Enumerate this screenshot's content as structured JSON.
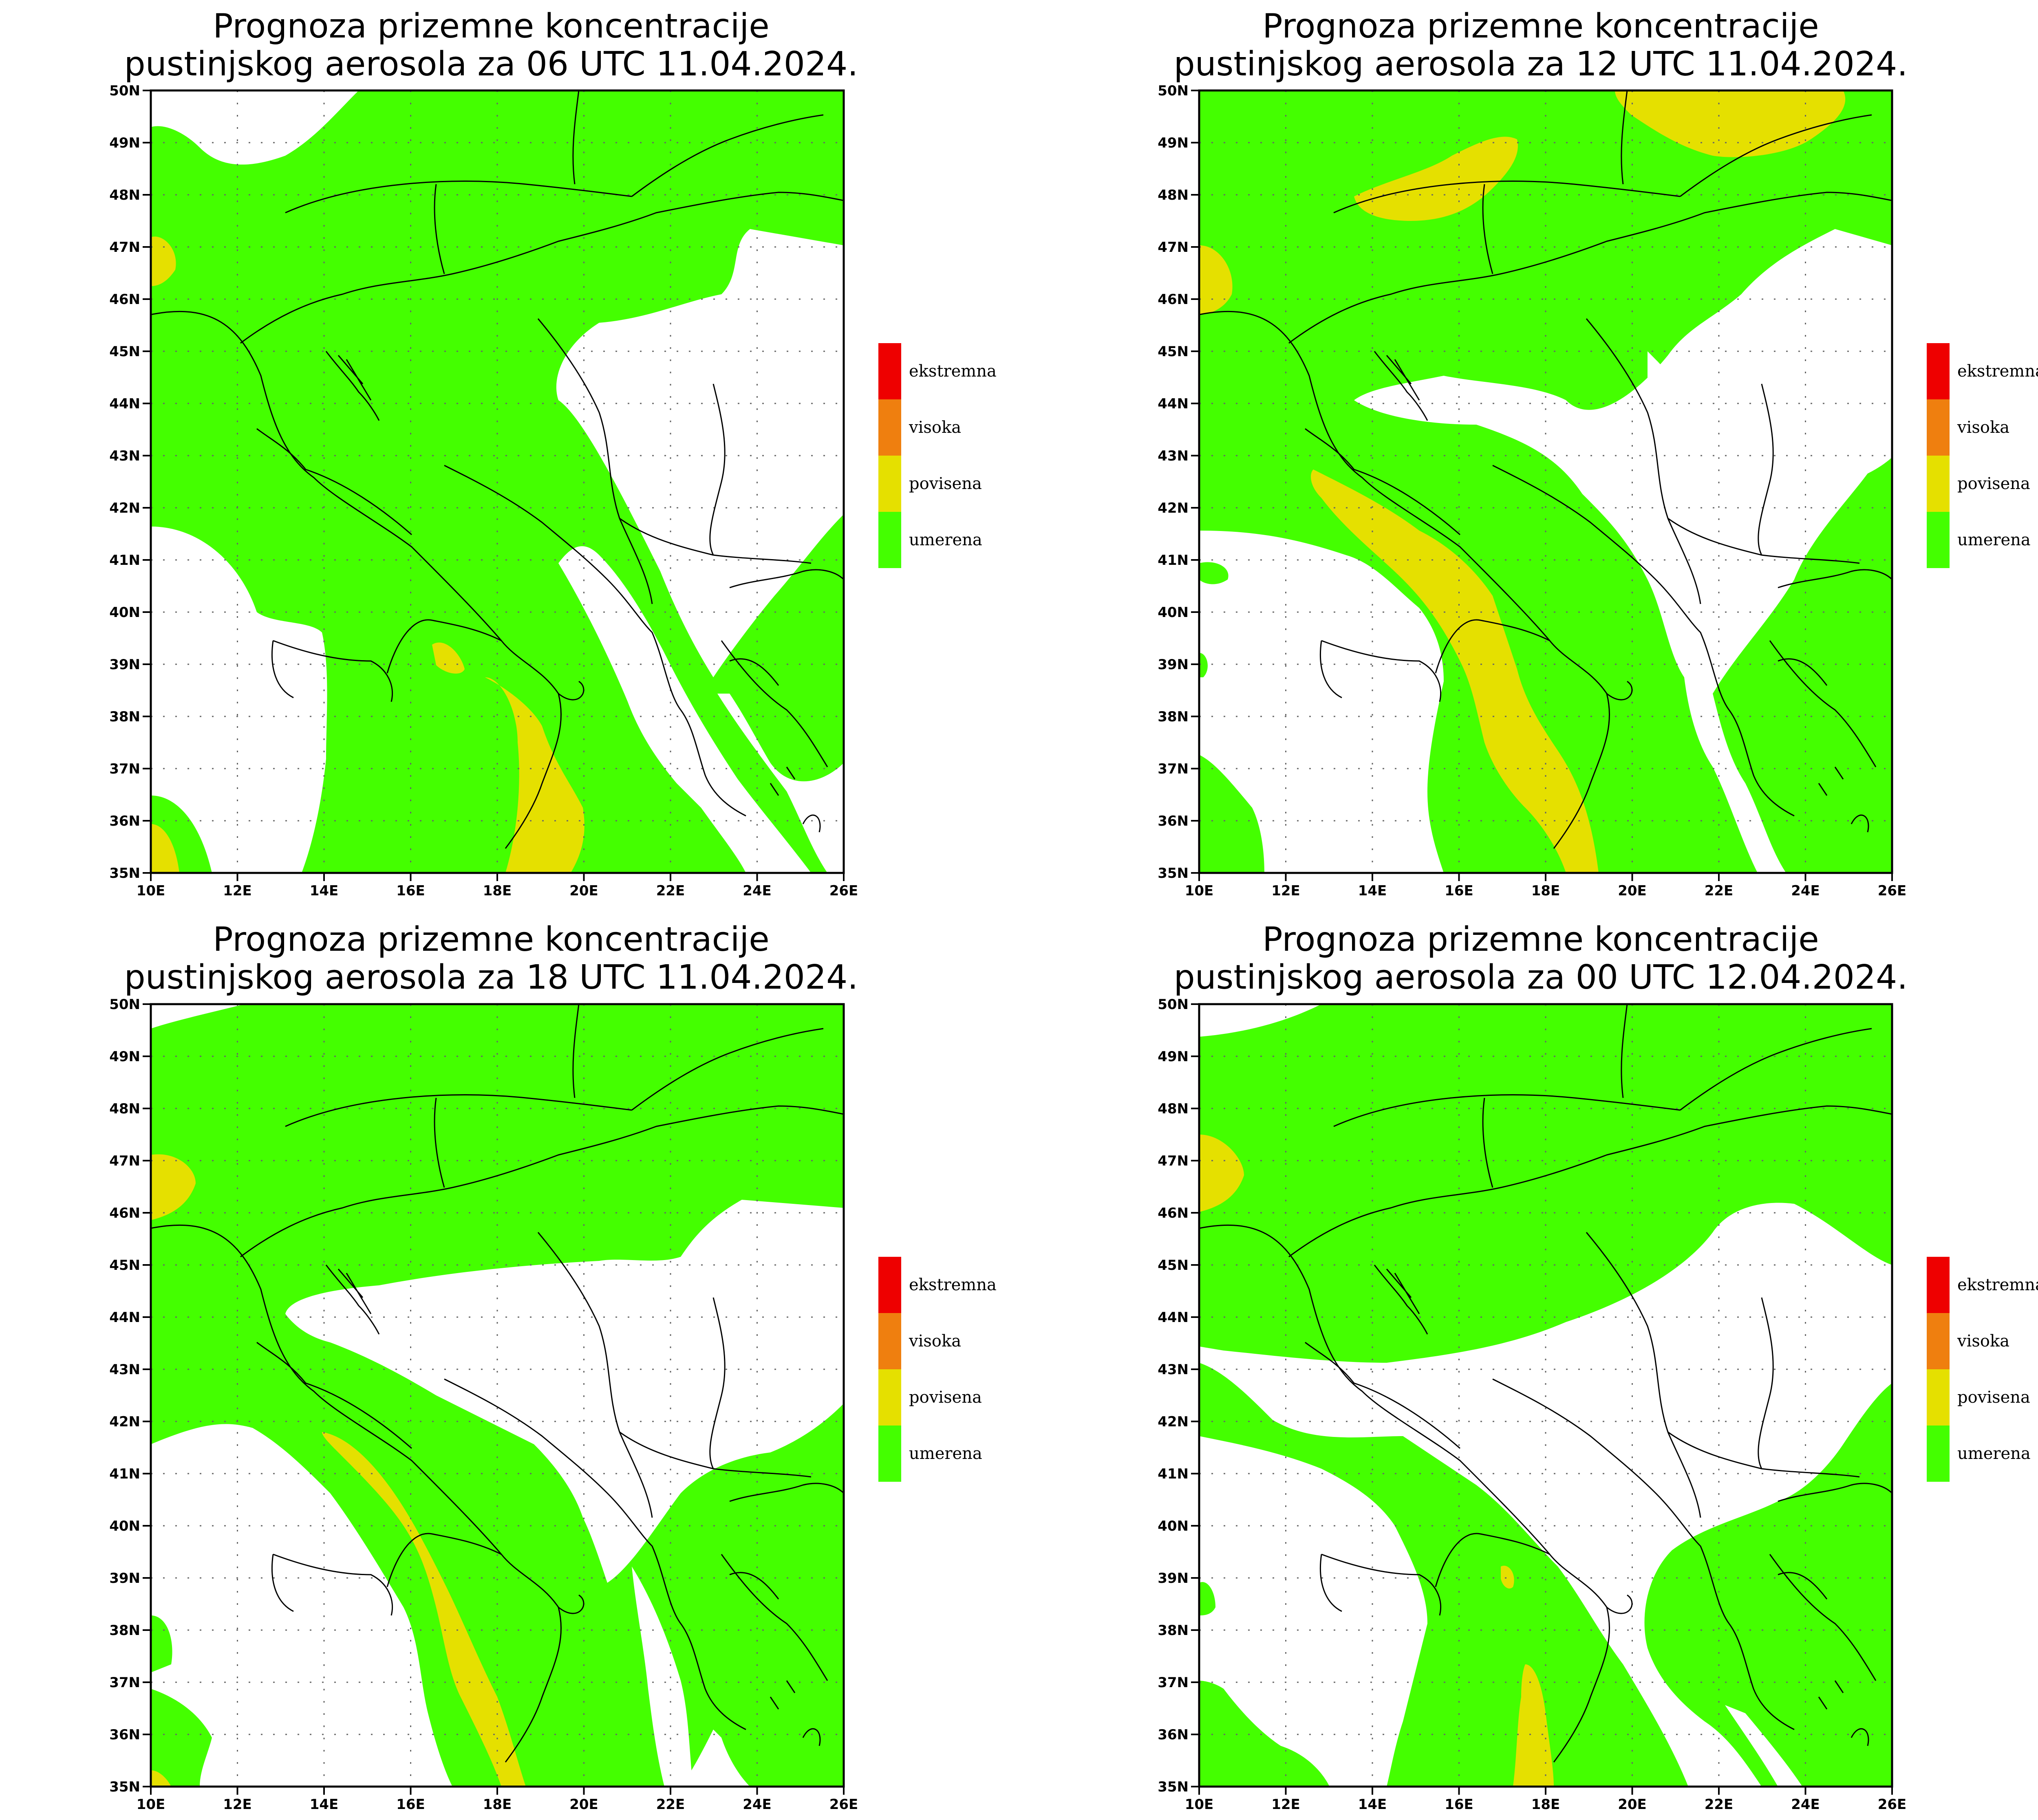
{
  "colors": {
    "ekstremna": "#ee0000",
    "visoka": "#ef7f0f",
    "povisena": "#e5e000",
    "umerena": "#44ff00",
    "land_white": "#ffffff",
    "borders": "#000000"
  },
  "legend": [
    {
      "label": "ekstremna",
      "color_key": "ekstremna"
    },
    {
      "label": "visoka",
      "color_key": "visoka"
    },
    {
      "label": "povisena",
      "color_key": "povisena"
    },
    {
      "label": "umerena",
      "color_key": "umerena"
    }
  ],
  "axes": {
    "lon": [
      "10E",
      "12E",
      "14E",
      "16E",
      "18E",
      "20E",
      "22E",
      "24E",
      "26E"
    ],
    "lat": [
      "35N",
      "36N",
      "37N",
      "38N",
      "39N",
      "40N",
      "41N",
      "42N",
      "43N",
      "44N",
      "45N",
      "46N",
      "47N",
      "48N",
      "49N",
      "50N"
    ]
  },
  "panels": [
    {
      "title_line1": "Prognoza prizemne koncentracije",
      "title_line2": "pustinjskog aerosola za 06 UTC 11.04.2024."
    },
    {
      "title_line1": "Prognoza prizemne koncentracije",
      "title_line2": "pustinjskog aerosola za 12 UTC 11.04.2024."
    },
    {
      "title_line1": "Prognoza prizemne koncentracije",
      "title_line2": "pustinjskog aerosola za 18 UTC 11.04.2024."
    },
    {
      "title_line1": "Prognoza prizemne koncentracije",
      "title_line2": "pustinjskog aerosola za 00 UTC 12.04.2024."
    }
  ]
}
